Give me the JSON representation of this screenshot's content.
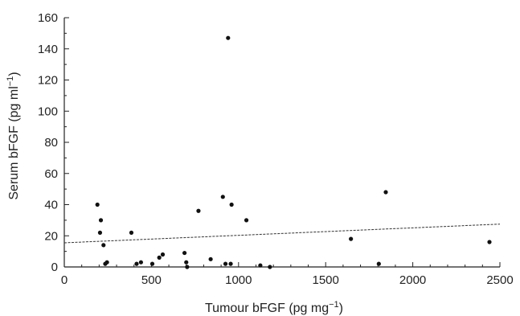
{
  "chart_data": {
    "type": "scatter",
    "xlabel": "Tumour bFGF (pg mg",
    "xlabel_sup": "−1",
    "xlabel_end": ")",
    "ylabel": "Serum bFGF (pg ml",
    "ylabel_sup": "−1",
    "ylabel_end": ")",
    "xlim": [
      0,
      2500
    ],
    "ylim": [
      0,
      160
    ],
    "x_ticks": [
      0,
      500,
      1000,
      1500,
      2000,
      2500
    ],
    "y_ticks": [
      0,
      20,
      40,
      60,
      80,
      100,
      120,
      140,
      160
    ],
    "x_tick_labels": [
      "0",
      "500",
      "1000",
      "1500",
      "2000",
      "2500"
    ],
    "y_tick_labels": [
      "0",
      "20",
      "40",
      "60",
      "80",
      "100",
      "120",
      "140",
      "160"
    ],
    "grid": false,
    "points": [
      {
        "x": 190,
        "y": 40
      },
      {
        "x": 205,
        "y": 22
      },
      {
        "x": 210,
        "y": 30
      },
      {
        "x": 225,
        "y": 14
      },
      {
        "x": 235,
        "y": 2
      },
      {
        "x": 245,
        "y": 3
      },
      {
        "x": 385,
        "y": 22
      },
      {
        "x": 415,
        "y": 2
      },
      {
        "x": 440,
        "y": 3
      },
      {
        "x": 505,
        "y": 2
      },
      {
        "x": 545,
        "y": 6
      },
      {
        "x": 565,
        "y": 8
      },
      {
        "x": 690,
        "y": 9
      },
      {
        "x": 700,
        "y": 3
      },
      {
        "x": 705,
        "y": 0
      },
      {
        "x": 770,
        "y": 36
      },
      {
        "x": 840,
        "y": 5
      },
      {
        "x": 910,
        "y": 45
      },
      {
        "x": 925,
        "y": 2
      },
      {
        "x": 940,
        "y": 147
      },
      {
        "x": 955,
        "y": 2
      },
      {
        "x": 960,
        "y": 40
      },
      {
        "x": 1045,
        "y": 30
      },
      {
        "x": 1125,
        "y": 1
      },
      {
        "x": 1180,
        "y": 0
      },
      {
        "x": 1645,
        "y": 18
      },
      {
        "x": 1805,
        "y": 2
      },
      {
        "x": 1845,
        "y": 48
      },
      {
        "x": 2440,
        "y": 16
      }
    ],
    "trendline": {
      "x": [
        0,
        2500
      ],
      "y": [
        15.5,
        27.5
      ]
    }
  }
}
